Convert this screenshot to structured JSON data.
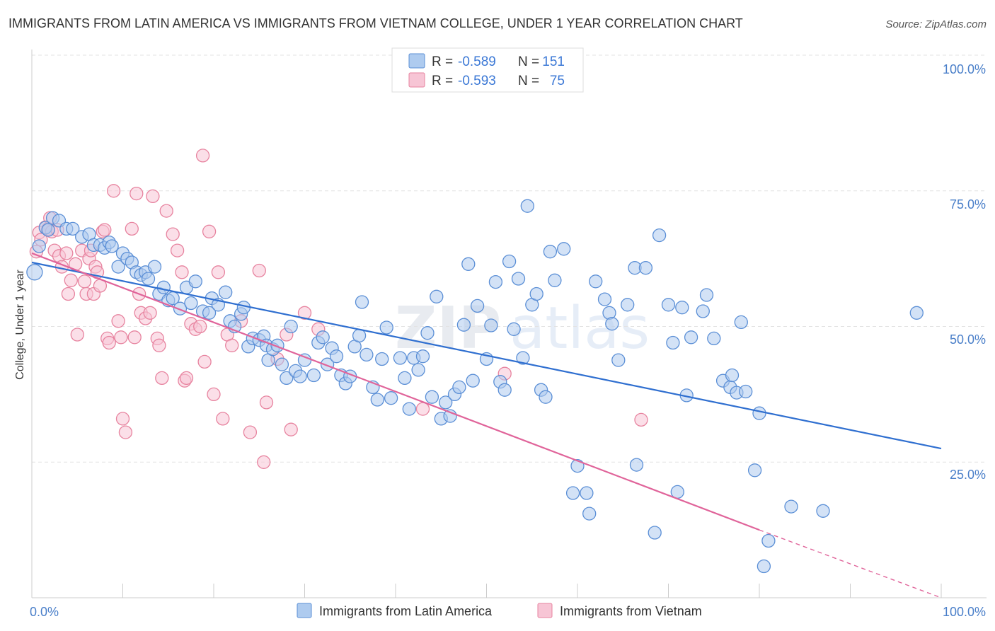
{
  "title": "IMMIGRANTS FROM LATIN AMERICA VS IMMIGRANTS FROM VIETNAM COLLEGE, UNDER 1 YEAR CORRELATION CHART",
  "source": "Source: ZipAtlas.com",
  "watermark": {
    "bold": "ZIP",
    "light": "atlas"
  },
  "legend": {
    "r_label": "R =",
    "n_label": "N =",
    "rows": [
      {
        "r": "-0.589",
        "n": "151",
        "color": "#aecbef"
      },
      {
        "r": "-0.593",
        "n": "75",
        "color": "#f5bfd1"
      }
    ]
  },
  "colors": {
    "blue_fill": "#aecbef",
    "blue_stroke": "#5b8fd6",
    "blue_line": "#2f6fd0",
    "pink_fill": "#f7c5d5",
    "pink_stroke": "#e7839f",
    "pink_line": "#e0649a",
    "grid": "#e3e3e3",
    "tick_text": "#4a7fc9"
  },
  "chart_data": {
    "type": "scatter",
    "title": "IMMIGRANTS FROM LATIN AMERICA VS IMMIGRANTS FROM VIETNAM COLLEGE, UNDER 1 YEAR CORRELATION CHART",
    "xlabel": "",
    "ylabel": "College, Under 1 year",
    "xlim": [
      0,
      100
    ],
    "ylim": [
      0,
      100
    ],
    "x_tick_labels": [
      "0.0%",
      "100.0%"
    ],
    "y_tick_labels": [
      "100.0%",
      "75.0%",
      "50.0%",
      "25.0%"
    ],
    "y_ticks": [
      100,
      75,
      50,
      25
    ],
    "grid": true,
    "series": [
      {
        "name": "Immigrants from Latin America",
        "color": "blue",
        "r": -0.589,
        "n": 151,
        "trend": {
          "x0": 0,
          "y0": 61.8,
          "x1": 100,
          "y1": 27.5
        },
        "points": [
          [
            0.3,
            60.0
          ],
          [
            0.8,
            64.8
          ],
          [
            1.5,
            68.2
          ],
          [
            1.8,
            67.8
          ],
          [
            2.3,
            70.0
          ],
          [
            3.0,
            69.5
          ],
          [
            3.8,
            68.0
          ],
          [
            4.5,
            68.0
          ],
          [
            5.5,
            66.5
          ],
          [
            6.3,
            67.0
          ],
          [
            6.8,
            65.0
          ],
          [
            7.5,
            65.0
          ],
          [
            8.0,
            64.5
          ],
          [
            8.5,
            65.5
          ],
          [
            8.8,
            64.8
          ],
          [
            9.5,
            61.0
          ],
          [
            10.0,
            63.5
          ],
          [
            10.5,
            62.5
          ],
          [
            11.0,
            61.8
          ],
          [
            11.5,
            60.0
          ],
          [
            12.0,
            59.5
          ],
          [
            12.5,
            60.0
          ],
          [
            12.8,
            58.8
          ],
          [
            13.5,
            61.0
          ],
          [
            14.0,
            56.0
          ],
          [
            14.5,
            57.2
          ],
          [
            15.0,
            54.8
          ],
          [
            15.5,
            55.2
          ],
          [
            16.3,
            53.3
          ],
          [
            17.0,
            57.2
          ],
          [
            17.5,
            54.3
          ],
          [
            18.0,
            58.3
          ],
          [
            18.8,
            52.8
          ],
          [
            19.5,
            52.5
          ],
          [
            19.8,
            55.2
          ],
          [
            20.5,
            54.0
          ],
          [
            21.3,
            56.3
          ],
          [
            21.8,
            51.0
          ],
          [
            22.3,
            50.0
          ],
          [
            23.0,
            52.3
          ],
          [
            23.3,
            53.5
          ],
          [
            23.8,
            46.3
          ],
          [
            24.3,
            47.8
          ],
          [
            25.0,
            47.5
          ],
          [
            25.5,
            48.2
          ],
          [
            25.8,
            46.5
          ],
          [
            26.0,
            43.8
          ],
          [
            26.5,
            45.8
          ],
          [
            27.0,
            46.5
          ],
          [
            27.5,
            43.0
          ],
          [
            28.0,
            40.5
          ],
          [
            28.5,
            50.0
          ],
          [
            29.0,
            41.8
          ],
          [
            29.5,
            40.8
          ],
          [
            30.0,
            43.8
          ],
          [
            31.0,
            41.0
          ],
          [
            31.5,
            47.0
          ],
          [
            32.0,
            48.0
          ],
          [
            32.5,
            43.0
          ],
          [
            33.0,
            46.0
          ],
          [
            33.5,
            44.5
          ],
          [
            34.0,
            41.0
          ],
          [
            34.5,
            39.5
          ],
          [
            35.0,
            40.8
          ],
          [
            35.5,
            46.3
          ],
          [
            36.0,
            48.3
          ],
          [
            36.3,
            54.5
          ],
          [
            36.8,
            44.8
          ],
          [
            37.5,
            38.8
          ],
          [
            38.0,
            36.5
          ],
          [
            38.5,
            44.0
          ],
          [
            39.0,
            49.8
          ],
          [
            39.5,
            36.8
          ],
          [
            40.5,
            44.2
          ],
          [
            41.0,
            40.5
          ],
          [
            41.5,
            34.8
          ],
          [
            42.0,
            44.2
          ],
          [
            42.5,
            42.0
          ],
          [
            43.0,
            44.5
          ],
          [
            43.5,
            48.8
          ],
          [
            44.0,
            37.0
          ],
          [
            44.5,
            55.5
          ],
          [
            45.0,
            33.0
          ],
          [
            45.5,
            36.0
          ],
          [
            46.0,
            33.5
          ],
          [
            46.5,
            37.5
          ],
          [
            47.0,
            38.8
          ],
          [
            47.5,
            50.3
          ],
          [
            48.0,
            61.5
          ],
          [
            48.5,
            40.0
          ],
          [
            49.0,
            53.8
          ],
          [
            50.0,
            44.0
          ],
          [
            50.5,
            50.2
          ],
          [
            51.0,
            58.2
          ],
          [
            51.5,
            39.8
          ],
          [
            52.0,
            38.3
          ],
          [
            52.5,
            62.0
          ],
          [
            53.0,
            49.5
          ],
          [
            53.5,
            58.8
          ],
          [
            54.0,
            44.2
          ],
          [
            54.5,
            72.2
          ],
          [
            55.0,
            54.0
          ],
          [
            55.5,
            56.0
          ],
          [
            56.0,
            38.3
          ],
          [
            56.5,
            37.0
          ],
          [
            57.0,
            63.8
          ],
          [
            57.5,
            58.5
          ],
          [
            58.5,
            64.3
          ],
          [
            59.5,
            19.3
          ],
          [
            60.0,
            24.3
          ],
          [
            61.0,
            19.3
          ],
          [
            61.3,
            15.5
          ],
          [
            62.0,
            58.3
          ],
          [
            63.0,
            55.0
          ],
          [
            63.5,
            52.5
          ],
          [
            63.8,
            50.5
          ],
          [
            64.5,
            43.8
          ],
          [
            65.5,
            54.0
          ],
          [
            66.3,
            60.8
          ],
          [
            66.5,
            24.5
          ],
          [
            67.5,
            60.8
          ],
          [
            68.5,
            12.0
          ],
          [
            69.0,
            66.8
          ],
          [
            70.0,
            54.0
          ],
          [
            70.5,
            47.0
          ],
          [
            71.0,
            19.5
          ],
          [
            71.5,
            53.5
          ],
          [
            72.0,
            37.3
          ],
          [
            72.5,
            48.0
          ],
          [
            73.8,
            52.8
          ],
          [
            74.2,
            55.8
          ],
          [
            75.0,
            47.8
          ],
          [
            76.0,
            40.0
          ],
          [
            76.8,
            38.8
          ],
          [
            77.0,
            41.0
          ],
          [
            77.5,
            37.8
          ],
          [
            78.0,
            50.8
          ],
          [
            78.5,
            38.0
          ],
          [
            79.5,
            23.5
          ],
          [
            80.0,
            34.0
          ],
          [
            80.5,
            5.8
          ],
          [
            81.0,
            10.5
          ],
          [
            83.5,
            16.8
          ],
          [
            87.0,
            16.0
          ],
          [
            97.3,
            52.5
          ]
        ]
      },
      {
        "name": "Immigrants from Vietnam",
        "color": "pink",
        "r": -0.593,
        "n": 75,
        "trend": {
          "x0": 0,
          "y0": 63.5,
          "x1": 80,
          "y1": 12.5
        },
        "trend_dashed": {
          "x0": 80,
          "y0": 12.5,
          "x1": 100,
          "y1": 0
        },
        "points": [
          [
            0.5,
            63.8
          ],
          [
            0.8,
            67.3
          ],
          [
            1.0,
            66.0
          ],
          [
            1.5,
            68.3
          ],
          [
            1.8,
            68.0
          ],
          [
            2.0,
            70.0
          ],
          [
            2.2,
            67.5
          ],
          [
            2.5,
            64.0
          ],
          [
            2.8,
            67.8
          ],
          [
            3.0,
            63.0
          ],
          [
            3.3,
            61.0
          ],
          [
            3.8,
            63.5
          ],
          [
            4.0,
            56.0
          ],
          [
            4.3,
            58.5
          ],
          [
            4.8,
            61.5
          ],
          [
            5.0,
            48.5
          ],
          [
            5.5,
            64.0
          ],
          [
            5.8,
            58.3
          ],
          [
            6.0,
            56.0
          ],
          [
            6.3,
            62.5
          ],
          [
            6.5,
            64.0
          ],
          [
            6.8,
            56.0
          ],
          [
            7.0,
            61.0
          ],
          [
            7.2,
            60.0
          ],
          [
            7.5,
            57.5
          ],
          [
            7.8,
            67.5
          ],
          [
            8.0,
            67.8
          ],
          [
            8.3,
            47.8
          ],
          [
            8.5,
            47.0
          ],
          [
            9.0,
            75.0
          ],
          [
            9.5,
            51.0
          ],
          [
            9.8,
            48.0
          ],
          [
            10.0,
            33.0
          ],
          [
            10.3,
            30.5
          ],
          [
            11.0,
            68.0
          ],
          [
            11.3,
            48.0
          ],
          [
            11.5,
            74.5
          ],
          [
            11.8,
            56.0
          ],
          [
            12.0,
            52.5
          ],
          [
            12.5,
            51.5
          ],
          [
            13.0,
            52.5
          ],
          [
            13.3,
            74.0
          ],
          [
            13.8,
            47.8
          ],
          [
            14.0,
            46.5
          ],
          [
            14.3,
            40.5
          ],
          [
            14.8,
            71.3
          ],
          [
            15.5,
            67.0
          ],
          [
            16.0,
            64.0
          ],
          [
            16.5,
            60.0
          ],
          [
            16.8,
            40.0
          ],
          [
            17.0,
            40.5
          ],
          [
            17.5,
            50.5
          ],
          [
            18.0,
            49.5
          ],
          [
            18.5,
            50.0
          ],
          [
            18.8,
            81.5
          ],
          [
            19.0,
            43.5
          ],
          [
            19.5,
            67.5
          ],
          [
            20.0,
            37.5
          ],
          [
            20.5,
            60.0
          ],
          [
            21.0,
            33.0
          ],
          [
            21.5,
            48.5
          ],
          [
            22.0,
            46.5
          ],
          [
            23.0,
            51.0
          ],
          [
            24.0,
            30.5
          ],
          [
            25.0,
            60.3
          ],
          [
            25.5,
            25.0
          ],
          [
            25.8,
            36.0
          ],
          [
            27.0,
            44.0
          ],
          [
            28.0,
            48.5
          ],
          [
            28.5,
            31.0
          ],
          [
            30.0,
            52.5
          ],
          [
            31.5,
            49.5
          ],
          [
            43.0,
            34.8
          ],
          [
            52.0,
            41.3
          ],
          [
            67.0,
            32.8
          ]
        ]
      }
    ]
  },
  "bottom_legend": [
    {
      "label": "Immigrants from Latin America",
      "color": "#aecbef"
    },
    {
      "label": "Immigrants from Vietnam",
      "color": "#f7c5d5"
    }
  ]
}
